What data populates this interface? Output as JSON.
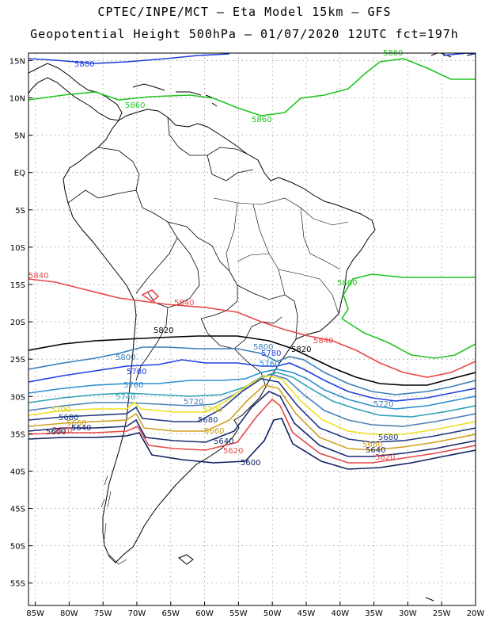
{
  "header": {
    "line1": "CPTEC/INPE/MCT –  Eta Model 15km – GFS",
    "line2": "Geopotential Height 500hPa – 01/07/2020 12UTC fct=197h"
  },
  "chart_data": {
    "type": "contour-map",
    "variable": "Geopotential Height 500hPa",
    "lon_range": [
      -86,
      -20
    ],
    "lat_range": [
      -58,
      16
    ],
    "lon_ticks": [
      "85W",
      "80W",
      "75W",
      "70W",
      "65W",
      "60W",
      "55W",
      "50W",
      "45W",
      "40W",
      "35W",
      "30W",
      "25W",
      "20W"
    ],
    "lat_ticks": [
      "15N",
      "10N",
      "5N",
      "EQ",
      "5S",
      "10S",
      "15S",
      "20S",
      "25S",
      "30S",
      "35S",
      "40S",
      "45S",
      "50S",
      "55S"
    ],
    "grid": true,
    "contours": [
      {
        "level": "5880",
        "color": "#1f3fdc",
        "labels": [
          "5880"
        ]
      },
      {
        "level": "5860",
        "color": "#22c422",
        "labels": [
          "5860",
          "5860",
          "5860",
          "5860"
        ]
      },
      {
        "level": "5840",
        "color": "#e84848",
        "labels": [
          "5840",
          "5840",
          "5840"
        ]
      },
      {
        "level": "5820",
        "color": "#000000",
        "labels": [
          "5820",
          "5820"
        ]
      },
      {
        "level": "5800",
        "color": "#3a7fb8",
        "labels": [
          "5800",
          "5800"
        ]
      },
      {
        "level": "5780",
        "color": "#2040e0",
        "labels": [
          "5780",
          "5780"
        ]
      },
      {
        "level": "5760",
        "color": "#2a8fd0",
        "labels": [
          "5760",
          "5760"
        ]
      },
      {
        "level": "5740",
        "color": "#30a0b8",
        "labels": [
          "5740"
        ]
      },
      {
        "level": "5720",
        "color": "#4a80b8",
        "labels": [
          "5720",
          "5720"
        ]
      },
      {
        "level": "5700",
        "color": "#f0e020",
        "labels": [
          "5700",
          "5700"
        ]
      },
      {
        "level": "5680",
        "color": "#203a80",
        "labels": [
          "5680",
          "5680",
          "5680"
        ]
      },
      {
        "level": "5660",
        "color": "#d0a020",
        "labels": [
          "5660",
          "5660",
          "5660"
        ]
      },
      {
        "level": "5640",
        "color": "#1a2a70",
        "labels": [
          "5640",
          "5640",
          "5640"
        ]
      },
      {
        "level": "5620",
        "color": "#e84848",
        "labels": [
          "5620",
          "5620",
          "5620"
        ]
      },
      {
        "level": "5600",
        "color": "#102060",
        "labels": [
          "5600",
          "5600"
        ]
      }
    ]
  }
}
